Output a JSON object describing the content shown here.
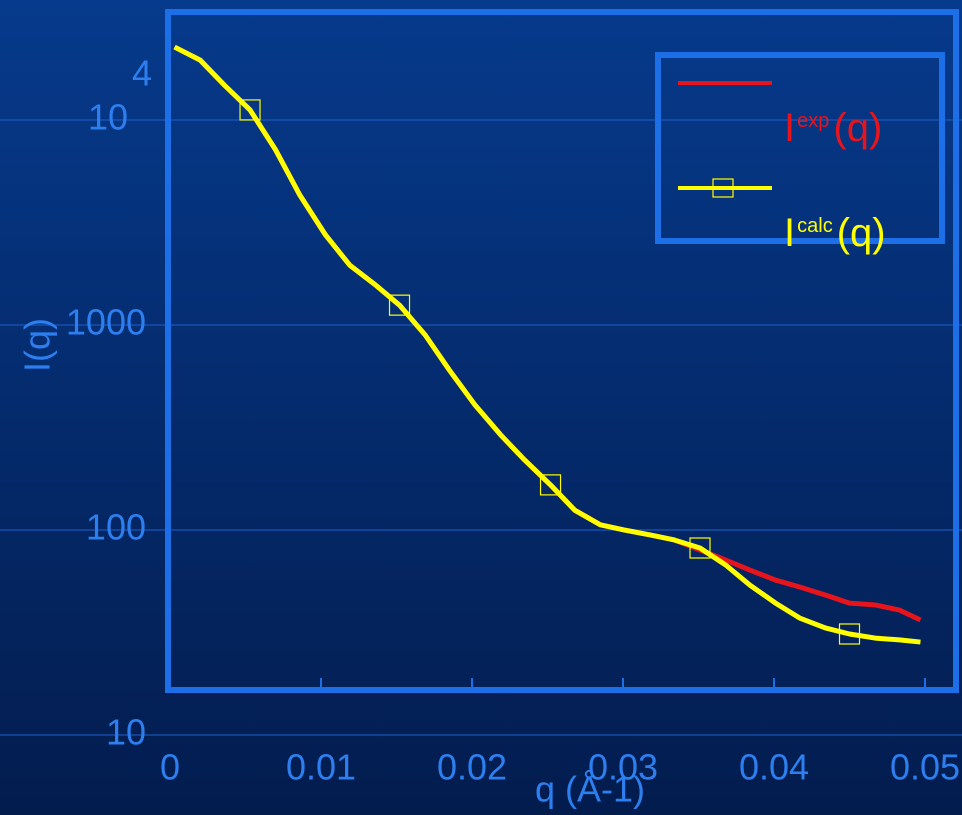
{
  "chart_data": {
    "type": "line",
    "x_label": "q (Å-1)",
    "y_label": "I(q)",
    "log_y": true,
    "grid": true,
    "legend_position": "upper right",
    "xlim": [
      0,
      0.05
    ],
    "xticks": [
      0,
      0.01,
      0.02,
      0.03,
      0.04,
      0.05
    ],
    "ylim": [
      10,
      35000
    ],
    "yticks": [
      10,
      100,
      1000,
      {
        "value": 10000,
        "label": "10",
        "exponent": "4"
      }
    ],
    "series": [
      {
        "name": {
          "main": "I",
          "sup": "exp",
          "tail": "(q)"
        },
        "color": "#e8141c",
        "x": [
          0.0003,
          0.002,
          0.0036,
          0.0053,
          0.007,
          0.0086,
          0.0103,
          0.0119,
          0.0136,
          0.0152,
          0.0169,
          0.0185,
          0.0202,
          0.0219,
          0.0235,
          0.0252,
          0.0268,
          0.0285,
          0.0301,
          0.0318,
          0.0334,
          0.0351,
          0.0368,
          0.0384,
          0.0401,
          0.0417,
          0.0434,
          0.045,
          0.0467,
          0.0483,
          0.0497
        ],
        "values": [
          22700,
          19600,
          14800,
          11200,
          7140,
          4300,
          2750,
          1960,
          1570,
          1250,
          894,
          603,
          407,
          291,
          219,
          166,
          125,
          106,
          100,
          94.6,
          89.4,
          79.8,
          71.4,
          63.8,
          57.0,
          52.7,
          48.2,
          44.0,
          43.1,
          40.7,
          36.4
        ]
      },
      {
        "name": {
          "main": "I",
          "sup": "calc",
          "tail": "(q)"
        },
        "color": "#ffff00",
        "x": [
          0.0003,
          0.002,
          0.0036,
          0.0053,
          0.007,
          0.0086,
          0.0103,
          0.0119,
          0.0136,
          0.0152,
          0.0169,
          0.0185,
          0.0202,
          0.0219,
          0.0235,
          0.0252,
          0.0268,
          0.0285,
          0.0301,
          0.0318,
          0.0334,
          0.0351,
          0.0368,
          0.0384,
          0.0401,
          0.0417,
          0.0434,
          0.045,
          0.0467,
          0.0483,
          0.0497
        ],
        "values": [
          22700,
          19600,
          14800,
          11200,
          7140,
          4300,
          2750,
          1960,
          1570,
          1250,
          894,
          603,
          407,
          291,
          219,
          166,
          125,
          106,
          100,
          94.6,
          89.4,
          81.7,
          67.5,
          53.9,
          44.0,
          37.2,
          33.3,
          31.1,
          29.7,
          29.1,
          28.4
        ]
      }
    ]
  }
}
